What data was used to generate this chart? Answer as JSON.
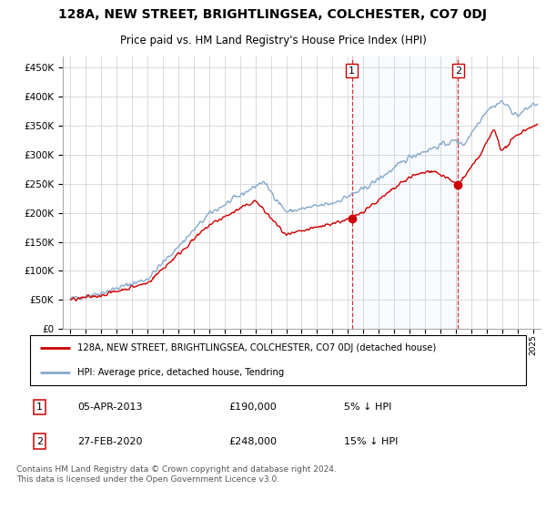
{
  "title": "128A, NEW STREET, BRIGHTLINGSEA, COLCHESTER, CO7 0DJ",
  "subtitle": "Price paid vs. HM Land Registry's House Price Index (HPI)",
  "footer": "Contains HM Land Registry data © Crown copyright and database right 2024.\nThis data is licensed under the Open Government Licence v3.0.",
  "legend_label_red": "128A, NEW STREET, BRIGHTLINGSEA, COLCHESTER, CO7 0DJ (detached house)",
  "legend_label_blue": "HPI: Average price, detached house, Tendring",
  "annotation1": {
    "label": "1",
    "date_str": "05-APR-2013",
    "price_str": "£190,000",
    "note": "5% ↓ HPI"
  },
  "annotation2": {
    "label": "2",
    "date_str": "27-FEB-2020",
    "price_str": "£248,000",
    "note": "15% ↓ HPI"
  },
  "red_color": "#cc0000",
  "blue_color": "#88aacc",
  "ylim": [
    0,
    470000
  ],
  "yticks": [
    0,
    50000,
    100000,
    150000,
    200000,
    250000,
    300000,
    350000,
    400000,
    450000
  ],
  "grid_color": "#cccccc",
  "shaded_region_color": "#ddeeff",
  "point1_x": 2013.25,
  "point1_y": 190000,
  "point2_x": 2020.15,
  "point2_y": 248000,
  "vline1_x": 2013.25,
  "vline2_x": 2020.15,
  "xlim_left": 1994.5,
  "xlim_right": 2025.5
}
